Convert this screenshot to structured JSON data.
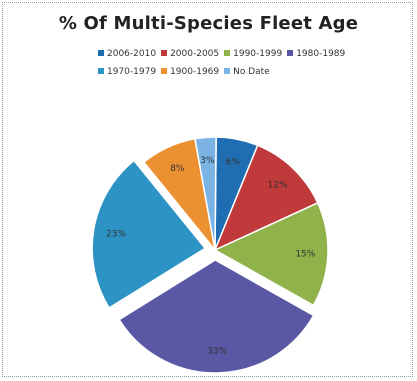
{
  "chart_data": {
    "type": "pie",
    "title": "% Of Multi-Species Fleet Age",
    "legend_position": "top",
    "slices": [
      {
        "name": "2006-2010",
        "value": 6,
        "label": "6%",
        "color": "#1f6eb4",
        "exploded": false
      },
      {
        "name": "2000-2005",
        "value": 12,
        "label": "12%",
        "color": "#c0393b",
        "exploded": false
      },
      {
        "name": "1990-1999",
        "value": 15,
        "label": "15%",
        "color": "#8fb24b",
        "exploded": false
      },
      {
        "name": "1980-1989",
        "value": 33,
        "label": "33%",
        "color": "#5a57a4",
        "exploded": true
      },
      {
        "name": "1970-1979",
        "value": 23,
        "label": "23%",
        "color": "#2d93c5",
        "exploded": true
      },
      {
        "name": "1900-1969",
        "value": 8,
        "label": "8%",
        "color": "#eb9132",
        "exploded": false
      },
      {
        "name": "No Date",
        "value": 3,
        "label": "3%",
        "color": "#7cb3e5",
        "exploded": false
      }
    ]
  }
}
